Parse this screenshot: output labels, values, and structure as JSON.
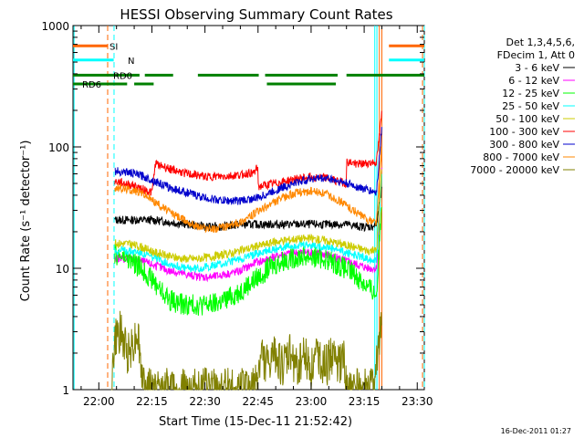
{
  "chart_data": {
    "type": "line",
    "title": "HESSI Observing Summary Count Rates",
    "xlabel": "Start Time (15-Dec-11 21:52:42)",
    "ylabel": "Count Rate (s⁻¹ detector⁻¹)",
    "x_unit": "minutes after 22:00",
    "xlim": [
      -7.3,
      92
    ],
    "ylim": [
      1,
      1000
    ],
    "y_scale": "log",
    "grid": false,
    "legend_position": "right",
    "x_ticks": [
      {
        "value": 0,
        "label": "22:00"
      },
      {
        "value": 15,
        "label": "22:15"
      },
      {
        "value": 30,
        "label": "22:30"
      },
      {
        "value": 45,
        "label": "22:45"
      },
      {
        "value": 60,
        "label": "23:00"
      },
      {
        "value": 75,
        "label": "23:15"
      },
      {
        "value": 90,
        "label": "23:30"
      }
    ],
    "y_ticks": [
      {
        "value": 1,
        "label": "1"
      },
      {
        "value": 10,
        "label": "10"
      },
      {
        "value": 100,
        "label": "100"
      },
      {
        "value": 1000,
        "label": "1000"
      }
    ],
    "legend_header": [
      "Det 1,3,4,5,6,",
      "FDecim 1, Att 0"
    ],
    "series": [
      {
        "name": "3 - 6 keV",
        "color": "#000000",
        "x": [
          4.5,
          10,
          15,
          20,
          25,
          30,
          35,
          40,
          44.9,
          45.1,
          50,
          55,
          60,
          65,
          70,
          74,
          77,
          78.5,
          80
        ],
        "y": [
          25,
          25,
          25,
          24,
          23,
          22,
          22,
          23,
          23,
          23,
          23,
          23,
          23,
          23,
          23,
          22,
          22,
          23,
          45
        ]
      },
      {
        "name": "6 - 12 keV",
        "color": "#ff00ff",
        "x": [
          4.5,
          8,
          12,
          16,
          20,
          24,
          28,
          32,
          36,
          40,
          44,
          48,
          52,
          56,
          60,
          64,
          68,
          72,
          76,
          78.5,
          80
        ],
        "y": [
          12,
          12,
          11.5,
          10.5,
          9.5,
          9,
          8.5,
          8.5,
          9,
          9.5,
          11,
          12,
          13,
          13.5,
          13.5,
          13,
          12,
          11,
          10,
          10,
          70
        ]
      },
      {
        "name": "12 - 25 keV",
        "color": "#00ff00",
        "x": [
          4.5,
          8,
          12,
          16,
          20,
          24,
          28,
          32,
          36,
          40,
          44,
          48,
          52,
          56,
          60,
          64,
          68,
          72,
          76,
          78.5,
          80
        ],
        "y": [
          13,
          12,
          10,
          7.5,
          5.5,
          5,
          5,
          5,
          5.5,
          6.5,
          8,
          10,
          11.5,
          12.5,
          12.5,
          12,
          10.5,
          9,
          7,
          6,
          40
        ]
      },
      {
        "name": "25 - 50 keV",
        "color": "#00ffff",
        "x": [
          4.5,
          8,
          12,
          16,
          20,
          24,
          28,
          32,
          36,
          40,
          44,
          48,
          52,
          56,
          60,
          64,
          68,
          72,
          76,
          78.5,
          80
        ],
        "y": [
          14,
          14,
          13.5,
          12,
          11,
          10,
          10,
          10.5,
          11,
          12,
          13,
          14,
          15,
          15.5,
          15.5,
          15,
          14,
          13,
          12,
          12,
          60
        ]
      },
      {
        "name": "50 - 100 keV",
        "color": "#cccc00",
        "x": [
          4.5,
          8,
          12,
          16,
          20,
          24,
          28,
          32,
          36,
          40,
          44,
          48,
          52,
          56,
          60,
          64,
          68,
          72,
          76,
          78.5,
          80
        ],
        "y": [
          16,
          16,
          15,
          13.5,
          12.5,
          12,
          12,
          12.5,
          13,
          14,
          15,
          16,
          17,
          17.5,
          17.5,
          17,
          16,
          15,
          14,
          14,
          70
        ]
      },
      {
        "name": "100 - 300 keV",
        "color": "#ff0000",
        "x": [
          4.5,
          10,
          15,
          16,
          20,
          25,
          30,
          35,
          40,
          44,
          44.9,
          45.1,
          50,
          55,
          60,
          65,
          69.9,
          70.1,
          74,
          78.5,
          80
        ],
        "y": [
          52,
          48,
          42,
          73,
          66,
          60,
          57,
          57,
          59,
          62,
          68,
          47,
          50,
          54,
          57,
          55,
          50,
          75,
          72,
          75,
          190
        ]
      },
      {
        "name": "300 - 800 keV",
        "color": "#0000cc",
        "x": [
          4.5,
          8,
          12,
          16,
          20,
          25,
          30,
          35,
          40,
          45,
          50,
          55,
          60,
          65,
          70,
          74,
          78.5,
          80
        ],
        "y": [
          63,
          62,
          58,
          52,
          46,
          42,
          38,
          36,
          36,
          38,
          44,
          50,
          55,
          55,
          50,
          46,
          42,
          150
        ]
      },
      {
        "name": "800 - 7000 keV",
        "color": "#ff8800",
        "x": [
          4.5,
          8,
          12,
          16,
          20,
          24,
          28,
          32,
          36,
          40,
          44,
          48,
          52,
          56,
          60,
          64,
          68,
          72,
          76,
          78.5,
          80
        ],
        "y": [
          46,
          45,
          42,
          35,
          29,
          25,
          22,
          21,
          22,
          24,
          28,
          33,
          38,
          42,
          43,
          41,
          36,
          30,
          25,
          24,
          110
        ]
      },
      {
        "name": "7000 - 20000 keV",
        "color": "#808000",
        "x": [
          3.5,
          4.5,
          6,
          8,
          10,
          11,
          12,
          12.5,
          14,
          17,
          43,
          44,
          46,
          48,
          50,
          52,
          54,
          56,
          58,
          60,
          62,
          64,
          66,
          68,
          69,
          70,
          78,
          79,
          80
        ],
        "y": [
          1,
          2.5,
          3,
          2,
          2.5,
          3,
          1.5,
          1,
          1,
          1,
          1,
          1,
          2,
          1.5,
          2,
          1.5,
          2,
          1.5,
          2,
          1.5,
          2,
          1.5,
          2,
          1.5,
          2,
          1,
          1,
          2.5,
          4
        ]
      }
    ],
    "flag_labels": [
      {
        "text": "SI",
        "color": "#ff6600"
      },
      {
        "text": "N",
        "color": "#00ffff"
      },
      {
        "text": "RD0",
        "color": "#000000"
      },
      {
        "text": "RD6",
        "color": "#008000"
      }
    ],
    "flag_bars": [
      {
        "color": "#ff6600",
        "y": 680,
        "segments": [
          [
            -7.3,
            2.5
          ],
          [
            82,
            92
          ]
        ]
      },
      {
        "color": "#00ffff",
        "y": 520,
        "segments": [
          [
            -7.3,
            4.2
          ],
          [
            82,
            92
          ]
        ]
      },
      {
        "color": "#008000",
        "y": 390,
        "segments": [
          [
            -7.3,
            11.5
          ],
          [
            13,
            21
          ],
          [
            28,
            45.2
          ],
          [
            47,
            67.5
          ],
          [
            70,
            92
          ]
        ]
      },
      {
        "color": "#008000",
        "y": 330,
        "segments": [
          [
            -7.3,
            8
          ],
          [
            10,
            15.5
          ],
          [
            47.5,
            67
          ]
        ]
      }
    ],
    "vertical_markers": [
      {
        "x": 2.5,
        "color": "#ff6600",
        "dashed": true
      },
      {
        "x": 4.3,
        "color": "#00ffff",
        "dashed": true
      },
      {
        "x": -7.0,
        "color": "#00ffff",
        "dashed": false
      },
      {
        "x": 78.0,
        "color": "#00ffff",
        "dashed": false
      },
      {
        "x": 78.6,
        "color": "#00ffff",
        "dashed": false
      },
      {
        "x": 79.3,
        "color": "#ff6600",
        "dashed": false
      },
      {
        "x": 80.0,
        "color": "#ff6600",
        "dashed": false
      },
      {
        "x": 92.0,
        "color": "#00ffff",
        "dashed": true
      },
      {
        "x": 91.5,
        "color": "#ff6600",
        "dashed": true
      }
    ],
    "footer_date": "16-Dec-2011 01:27"
  }
}
